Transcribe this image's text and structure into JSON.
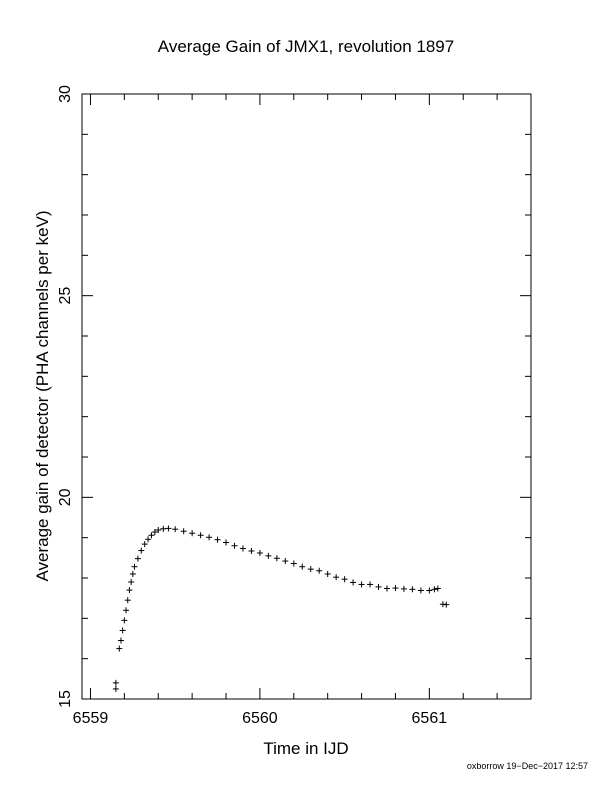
{
  "chart_data": {
    "type": "scatter",
    "title": "Average Gain of JMX1, revolution 1897",
    "xlabel": "Time in IJD",
    "ylabel": "Average gain of detector (PHA channels per keV)",
    "xlim": [
      6558.95,
      6561.6
    ],
    "ylim": [
      15,
      30
    ],
    "x_ticks": [
      6559,
      6560,
      6561
    ],
    "x_tick_labels": [
      "6559",
      "6560",
      "6561"
    ],
    "y_ticks": [
      15,
      20,
      25,
      30
    ],
    "y_tick_labels": [
      "15",
      "20",
      "25",
      "30"
    ],
    "grid": false,
    "marker": "+",
    "series": [
      {
        "marker": "+",
        "color": "#000000",
        "points": [
          [
            6559.15,
            15.25
          ],
          [
            6559.15,
            15.4
          ],
          [
            6559.17,
            16.25
          ],
          [
            6559.18,
            16.45
          ],
          [
            6559.19,
            16.7
          ],
          [
            6559.2,
            16.95
          ],
          [
            6559.21,
            17.2
          ],
          [
            6559.22,
            17.45
          ],
          [
            6559.23,
            17.7
          ],
          [
            6559.24,
            17.9
          ],
          [
            6559.25,
            18.1
          ],
          [
            6559.26,
            18.28
          ],
          [
            6559.28,
            18.48
          ],
          [
            6559.3,
            18.68
          ],
          [
            6559.32,
            18.84
          ],
          [
            6559.34,
            18.96
          ],
          [
            6559.36,
            19.06
          ],
          [
            6559.38,
            19.14
          ],
          [
            6559.4,
            19.19
          ],
          [
            6559.43,
            19.22
          ],
          [
            6559.46,
            19.23
          ],
          [
            6559.5,
            19.21
          ],
          [
            6559.55,
            19.16
          ],
          [
            6559.6,
            19.11
          ],
          [
            6559.65,
            19.06
          ],
          [
            6559.7,
            19.01
          ],
          [
            6559.75,
            18.95
          ],
          [
            6559.8,
            18.88
          ],
          [
            6559.85,
            18.8
          ],
          [
            6559.9,
            18.73
          ],
          [
            6559.95,
            18.67
          ],
          [
            6560.0,
            18.62
          ],
          [
            6560.05,
            18.55
          ],
          [
            6560.1,
            18.49
          ],
          [
            6560.15,
            18.42
          ],
          [
            6560.2,
            18.36
          ],
          [
            6560.25,
            18.28
          ],
          [
            6560.3,
            18.22
          ],
          [
            6560.35,
            18.18
          ],
          [
            6560.4,
            18.1
          ],
          [
            6560.45,
            18.02
          ],
          [
            6560.5,
            17.97
          ],
          [
            6560.55,
            17.89
          ],
          [
            6560.6,
            17.84
          ],
          [
            6560.65,
            17.84
          ],
          [
            6560.7,
            17.78
          ],
          [
            6560.75,
            17.74
          ],
          [
            6560.8,
            17.75
          ],
          [
            6560.85,
            17.73
          ],
          [
            6560.9,
            17.72
          ],
          [
            6560.95,
            17.69
          ],
          [
            6561.0,
            17.69
          ],
          [
            6561.03,
            17.72
          ],
          [
            6561.05,
            17.74
          ],
          [
            6561.08,
            17.35
          ],
          [
            6561.1,
            17.34
          ]
        ]
      }
    ]
  },
  "footer": {
    "credit": "oxborrow 19−Dec−2017 12:57"
  }
}
